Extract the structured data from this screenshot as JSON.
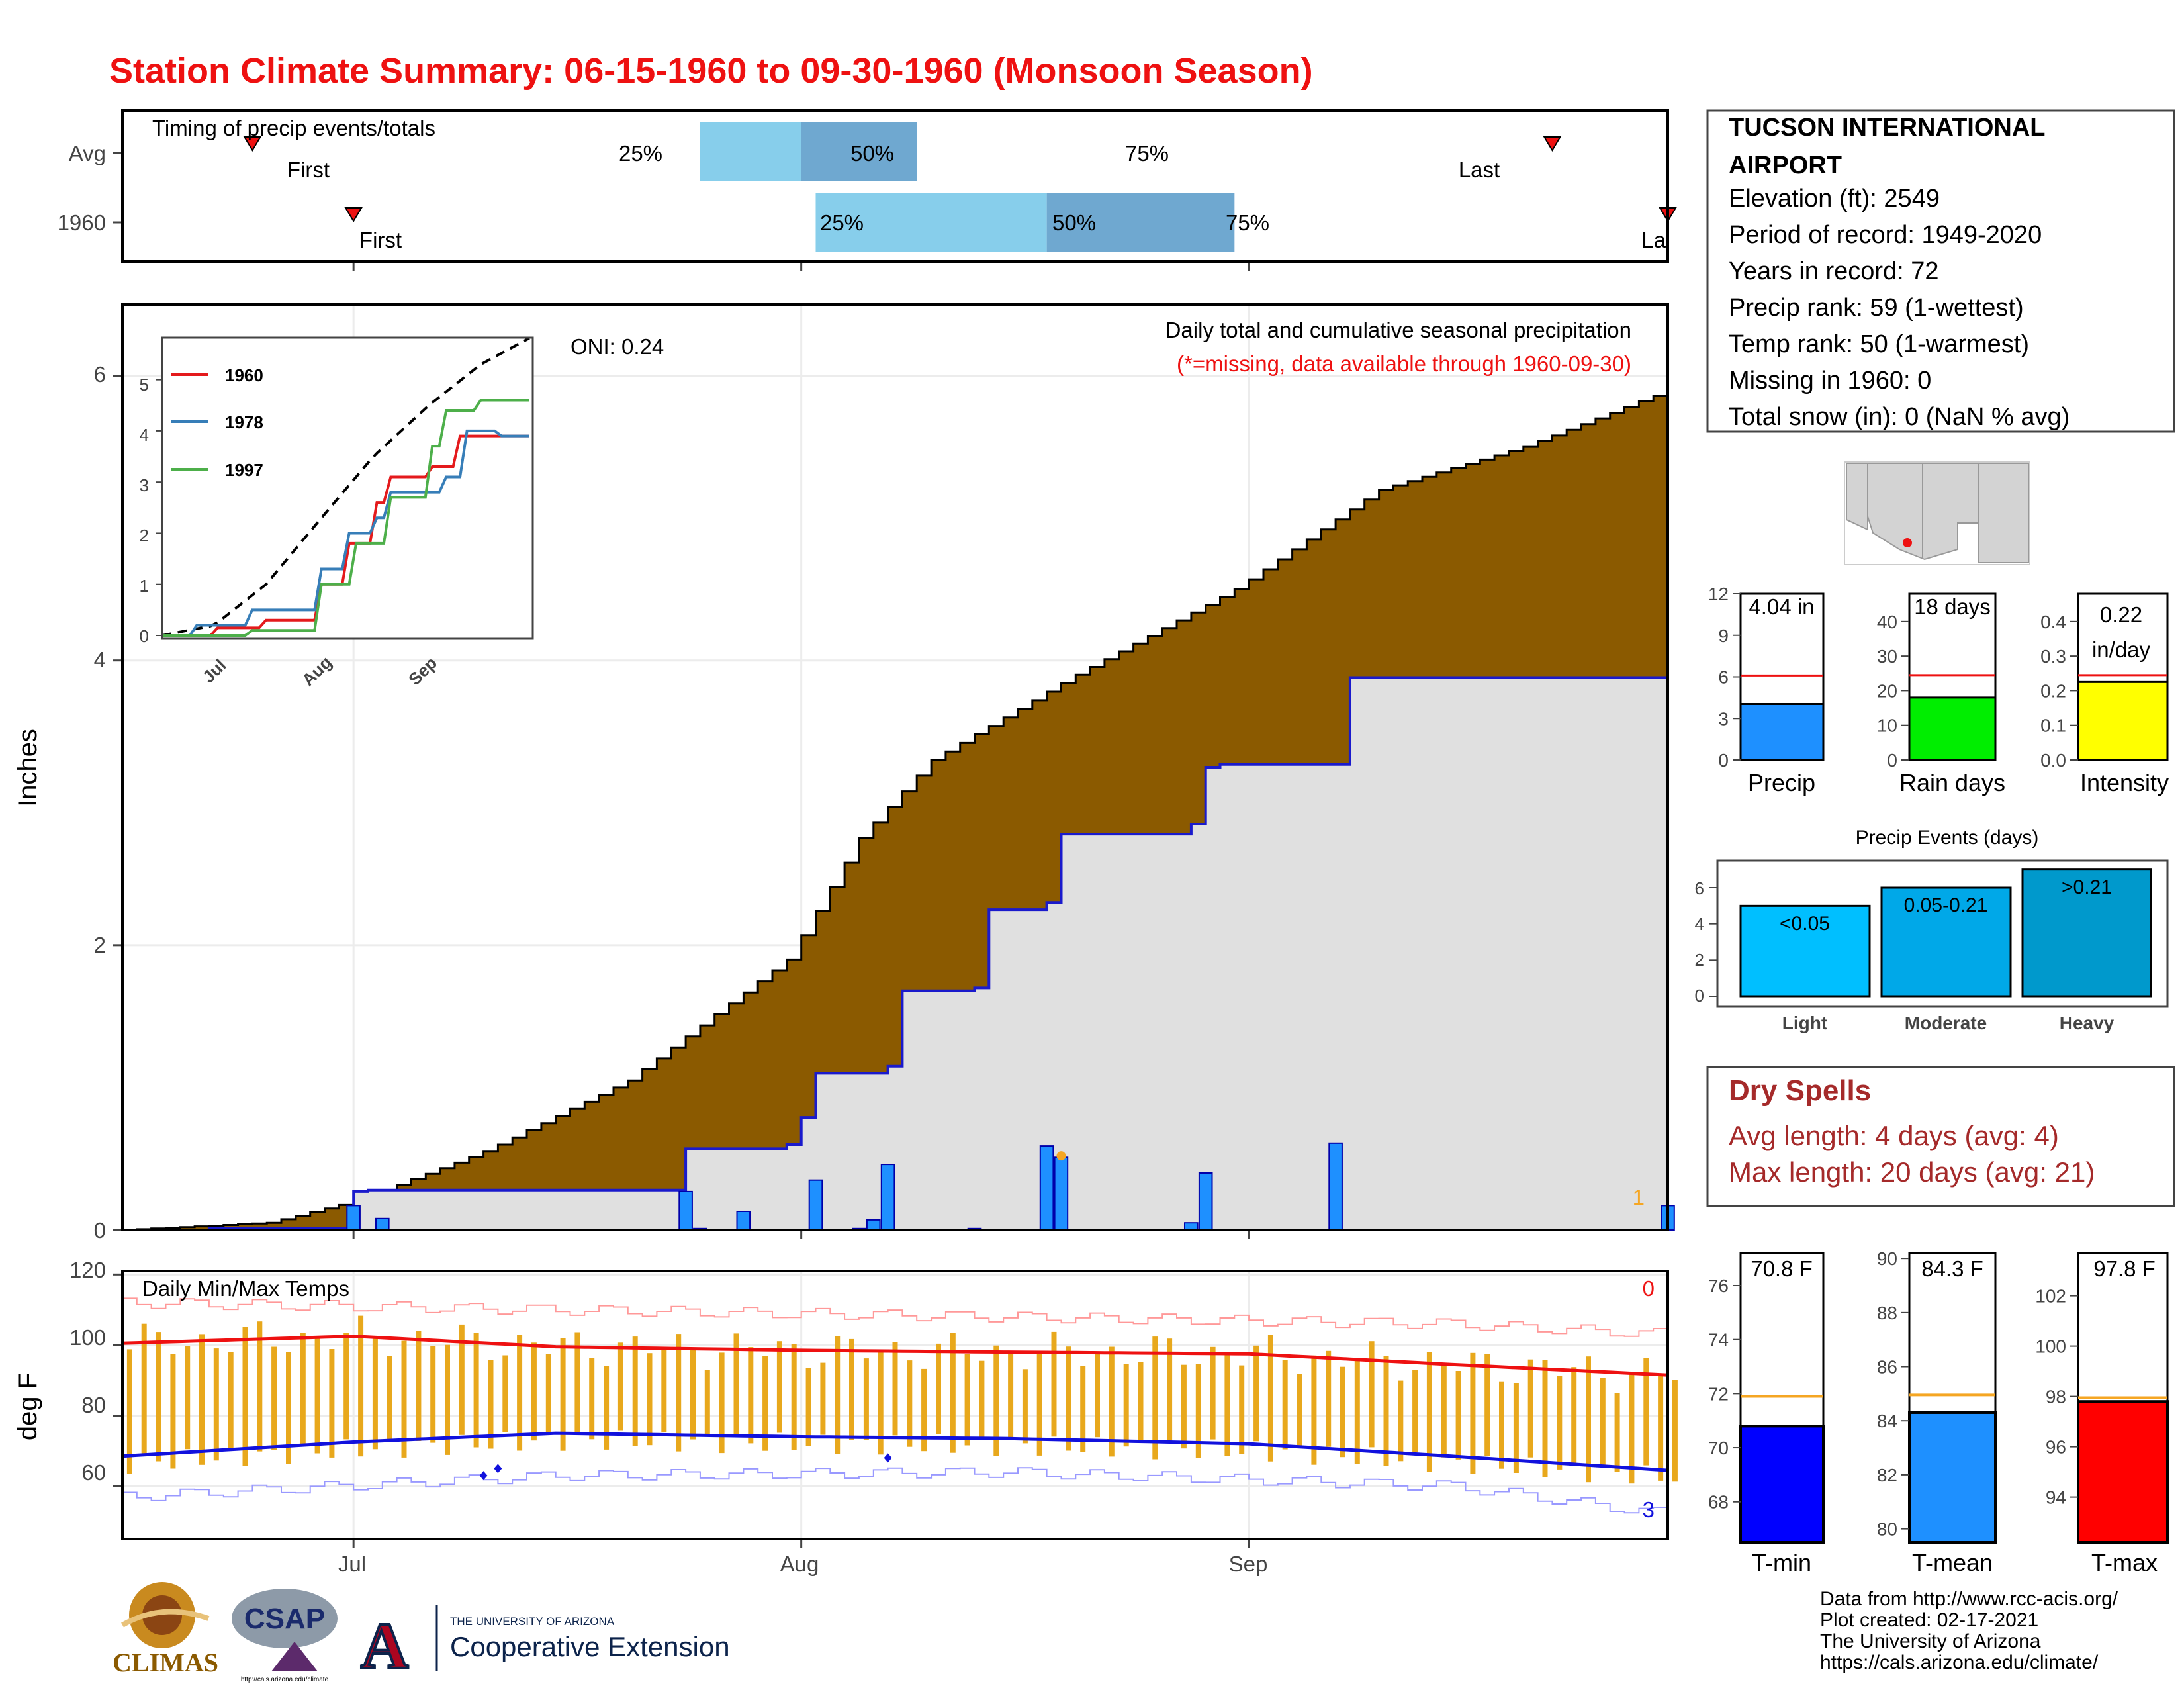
{
  "title": "Station Climate Summary: 06-15-1960 to 09-30-1960 (Monsoon Season)",
  "colors": {
    "title": "#ee1111",
    "brown": "#8b5a00",
    "avg_fill": "#e0e0e0",
    "blue_line": "#1a1acc",
    "bar_blue": "#1e90ff",
    "light_blue": "#87ceeb",
    "mid_blue": "#6fa8d0",
    "tmax": "#ee1111",
    "tmin": "#1111dd",
    "gold": "#e8a81c",
    "orange": "#f5a623",
    "green": "#00ee00",
    "yellow": "#ffff00",
    "dry_text": "#a52a2a",
    "tmean_bar": "#1e90ff"
  },
  "timing_panel": {
    "label": "Timing of precip events/totals",
    "rows": [
      {
        "name": "Avg",
        "first_label": "First",
        "last_label": "Last",
        "first": "Jun 24",
        "p25": "Jul 25",
        "p50": "Aug 1",
        "p75": "Aug 9",
        "last": "Sep 22",
        "p25_label": "25%",
        "p50_label": "50%",
        "p75_label": "75%"
      },
      {
        "name": "1960",
        "first_label": "First",
        "last_label": "La",
        "first": "Jul 1",
        "p25": "Aug 2",
        "p50": "Aug 18",
        "p75": "Aug 31",
        "last": "Sep 30",
        "p25_label": "25%",
        "p50_label": "50%",
        "p75_label": "75%"
      }
    ]
  },
  "main_panel": {
    "ylabel": "Inches",
    "y_ticks": [
      "0",
      "2",
      "4",
      "6"
    ],
    "oni_label": "ONI: 0.24",
    "note": "Daily total and cumulative seasonal precipitation",
    "missing_note": "(*=missing, data available through 1960-09-30)",
    "missing_count": "1"
  },
  "inset": {
    "y_ticks": [
      "0",
      "1",
      "2",
      "3",
      "4",
      "5"
    ],
    "x_ticks": [
      "Jul",
      "Aug",
      "Sep"
    ],
    "legend": [
      {
        "name": "1960",
        "color": "#e41a1c"
      },
      {
        "name": "1978",
        "color": "#377eb8"
      },
      {
        "name": "1997",
        "color": "#4daf4a"
      }
    ]
  },
  "temp_panel": {
    "title": "Daily Min/Max Temps",
    "ylabel": "deg F",
    "y_ticks": [
      "60",
      "80",
      "100",
      "120"
    ],
    "x_ticks": [
      "Jul",
      "Aug",
      "Sep"
    ],
    "max_count": "0",
    "min_count": "3"
  },
  "station": {
    "name_line1": "TUCSON INTERNATIONAL",
    "name_line2": "AIRPORT",
    "lines": [
      "Elevation (ft): 2549",
      "Period of record: 1949-2020",
      "Years in record: 72",
      "Precip rank: 59 (1-wettest)",
      "Temp rank: 50 (1-warmest)",
      "Missing in 1960: 0",
      "Total snow (in): 0 (NaN % avg)"
    ]
  },
  "summary_bars": [
    {
      "label": "Precip",
      "value_text": "4.04 in",
      "value": 4.04,
      "avg": 6.1,
      "max": 12,
      "ticks": [
        "0",
        "3",
        "6",
        "9",
        "12"
      ],
      "color": "#1e90ff"
    },
    {
      "label": "Rain days",
      "value_text": "18 days",
      "value": 18,
      "avg": 24.5,
      "max": 48,
      "ticks": [
        "0",
        "10",
        "20",
        "30",
        "40"
      ],
      "color": "#00ee00"
    },
    {
      "label": "Intensity",
      "value_text": "0.22",
      "value_text2": "in/day",
      "value": 0.225,
      "avg": 0.245,
      "max": 0.48,
      "ticks": [
        "0.0",
        "0.1",
        "0.2",
        "0.3",
        "0.4"
      ],
      "color": "#ffff00"
    }
  ],
  "events": {
    "title": "Precip Events (days)",
    "y_ticks": [
      "0",
      "2",
      "4",
      "6"
    ],
    "bars": [
      {
        "category": "Light",
        "label": "<0.05",
        "value": 5,
        "color": "#00bfff"
      },
      {
        "category": "Moderate",
        "label": "0.05-0.21",
        "value": 6,
        "color": "#00a8e8"
      },
      {
        "category": "Heavy",
        "label": ">0.21",
        "value": 7,
        "color": "#0099cc"
      }
    ]
  },
  "dry_spells": {
    "title": "Dry Spells",
    "line1": "Avg length: 4 days (avg: 4)",
    "line2": "Max length: 20 days (avg: 21)"
  },
  "temp_bars": [
    {
      "label": "T-min",
      "value_text": "70.8 F",
      "value": 70.8,
      "avg": 71.9,
      "min": 66.5,
      "max": 77.2,
      "ticks": [
        "68",
        "70",
        "72",
        "74",
        "76"
      ],
      "color": "#0000ff"
    },
    {
      "label": "T-mean",
      "value_text": "84.3 F",
      "value": 84.3,
      "avg": 84.95,
      "min": 79.5,
      "max": 90.2,
      "ticks": [
        "80",
        "82",
        "84",
        "86",
        "88",
        "90"
      ],
      "color": "#1e90ff"
    },
    {
      "label": "T-max",
      "value_text": "97.8 F",
      "value": 97.8,
      "avg": 97.95,
      "min": 92.2,
      "max": 103.7,
      "ticks": [
        "94",
        "96",
        "98",
        "100",
        "102"
      ],
      "color": "#ff0000"
    }
  ],
  "footer": {
    "lines": [
      "Data from http://www.rcc-acis.org/",
      "Plot created: 02-17-2021",
      "The University of Arizona",
      "https://cals.arizona.edu/climate/"
    ],
    "climas": "CLIMAS",
    "csap": "CSAP",
    "csap_url": "http://cals.arizona.edu/climate",
    "ua_small": "THE UNIVERSITY OF ARIZONA",
    "ua_big": "Cooperative Extension"
  },
  "chart_data": [
    {
      "type": "area",
      "title": "Daily total and cumulative seasonal precipitation",
      "ylabel": "Inches",
      "ylim": [
        0,
        6.5
      ],
      "x_range": [
        "06-15",
        "09-30"
      ],
      "x_ticks": [
        "Jul",
        "Aug",
        "Sep"
      ],
      "series": [
        {
          "name": "cumulative average (brown staircase)",
          "x": [
            "06-15",
            "06-25",
            "07-01",
            "07-10",
            "07-20",
            "07-31",
            "08-05",
            "08-10",
            "08-20",
            "08-31",
            "09-10",
            "09-20",
            "09-30"
          ],
          "values": [
            0.0,
            0.05,
            0.2,
            0.55,
            1.05,
            1.9,
            2.75,
            3.3,
            3.9,
            4.5,
            5.2,
            5.5,
            5.9
          ]
        },
        {
          "name": "cumulative 1960",
          "x": [
            "06-21",
            "07-01",
            "07-02",
            "07-23",
            "07-24",
            "07-31",
            "08-01",
            "08-02",
            "08-07",
            "08-08",
            "08-13",
            "08-14",
            "08-18",
            "08-19",
            "08-20",
            "08-28",
            "08-29",
            "08-30",
            "09-07",
            "09-08",
            "09-29",
            "09-30"
          ],
          "values": [
            0.01,
            0.27,
            0.28,
            0.28,
            0.57,
            0.6,
            0.79,
            1.1,
            1.15,
            1.68,
            1.7,
            2.25,
            2.3,
            2.78,
            2.78,
            2.85,
            3.25,
            3.27,
            3.27,
            3.88,
            3.88,
            4.04
          ]
        },
        {
          "name": "daily 1960",
          "x": [
            "07-01",
            "07-03",
            "07-24",
            "07-25",
            "07-28",
            "08-02",
            "08-05",
            "08-06",
            "08-07",
            "08-13",
            "08-18",
            "08-19",
            "08-28",
            "08-29",
            "09-07",
            "09-30"
          ],
          "values": [
            0.17,
            0.08,
            0.27,
            0.01,
            0.13,
            0.35,
            0.01,
            0.07,
            0.46,
            0.01,
            0.59,
            0.51,
            0.05,
            0.4,
            0.61,
            0.17
          ]
        }
      ]
    },
    {
      "type": "line",
      "title": "",
      "x_ticks": [
        "Jul",
        "Aug",
        "Sep"
      ],
      "ylim": [
        0,
        5.5
      ],
      "series": [
        {
          "name": "avg",
          "x": [
            "06-15",
            "06-30",
            "07-15",
            "07-31",
            "08-15",
            "08-31",
            "09-15",
            "09-30"
          ],
          "values": [
            0.0,
            0.2,
            1.0,
            2.3,
            3.5,
            4.5,
            5.3,
            5.85
          ]
        },
        {
          "name": "1960",
          "x": [
            "06-15",
            "07-01",
            "07-15",
            "07-31",
            "08-07",
            "08-15",
            "08-20",
            "08-31",
            "09-08",
            "09-30"
          ],
          "values": [
            0.0,
            0.15,
            0.3,
            1.0,
            1.8,
            2.6,
            3.1,
            3.3,
            3.9,
            3.9
          ]
        },
        {
          "name": "1978",
          "x": [
            "06-15",
            "06-25",
            "07-10",
            "07-31",
            "08-07",
            "08-15",
            "08-20",
            "09-05",
            "09-10",
            "09-20",
            "09-30"
          ],
          "values": [
            0.0,
            0.2,
            0.5,
            1.3,
            2.0,
            2.3,
            2.8,
            3.1,
            4.0,
            3.9,
            4.6
          ]
        },
        {
          "name": "1997",
          "x": [
            "06-15",
            "07-10",
            "07-31",
            "08-10",
            "08-20",
            "08-31",
            "09-05",
            "09-15",
            "09-30"
          ],
          "values": [
            0.0,
            0.1,
            1.0,
            1.8,
            2.7,
            3.7,
            4.4,
            4.6,
            4.3
          ]
        }
      ]
    },
    {
      "type": "bar",
      "title": "Daily Min/Max Temps",
      "ylabel": "deg F",
      "ylim": [
        45,
        121
      ],
      "x_ticks": [
        "Jul",
        "Aug",
        "Sep"
      ],
      "series": [
        {
          "name": "avg max",
          "x": [
            "06-15",
            "07-01",
            "07-15",
            "08-01",
            "08-15",
            "09-01",
            "09-15",
            "09-30"
          ],
          "values": [
            100.5,
            102.5,
            99.5,
            98.5,
            98.0,
            97.5,
            94.5,
            91.5
          ]
        },
        {
          "name": "avg min",
          "x": [
            "06-15",
            "07-01",
            "07-15",
            "08-01",
            "08-15",
            "09-01",
            "09-15",
            "09-30"
          ],
          "values": [
            68.5,
            72.5,
            75.0,
            74.0,
            73.5,
            72.0,
            68.5,
            64.5
          ]
        },
        {
          "name": "record high",
          "x": [
            "06-15",
            "07-15",
            "08-15",
            "09-15",
            "09-30"
          ],
          "values": [
            112,
            110,
            108,
            106,
            103
          ]
        },
        {
          "name": "record low",
          "x": [
            "06-15",
            "07-15",
            "08-15",
            "09-15",
            "09-30"
          ],
          "values": [
            57,
            63,
            64,
            60,
            52
          ]
        }
      ]
    }
  ]
}
